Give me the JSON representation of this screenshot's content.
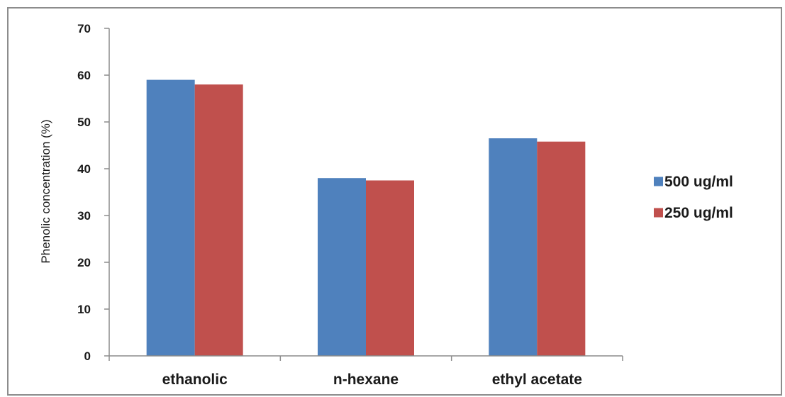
{
  "chart_data": {
    "type": "bar",
    "title": "",
    "xlabel": "",
    "ylabel": "Phenolic concentration (%)",
    "categories": [
      "ethanolic",
      "n-hexane",
      "ethyl acetate"
    ],
    "series": [
      {
        "name": "500 ug/ml",
        "color": "#4f81bd",
        "values": [
          59,
          38,
          46.5
        ]
      },
      {
        "name": "250 ug/ml",
        "color": "#c0504d",
        "values": [
          58,
          37.5,
          45.8
        ]
      }
    ],
    "ylim": [
      0,
      70
    ],
    "yticks": [
      0,
      10,
      20,
      30,
      40,
      50,
      60,
      70
    ],
    "grid": false,
    "legend_position": "right"
  }
}
